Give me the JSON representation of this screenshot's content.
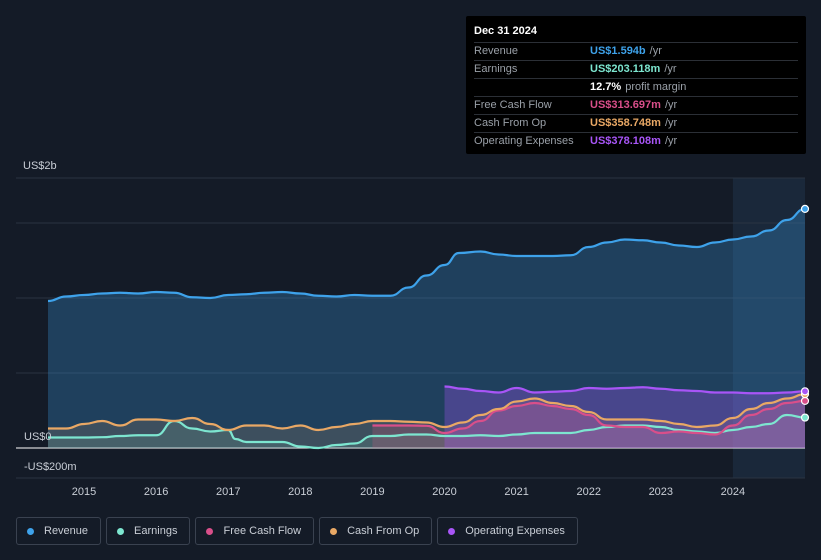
{
  "tooltip": {
    "date": "Dec 31 2024",
    "rows": [
      {
        "label": "Revenue",
        "value": "US$1.594b",
        "unit": "/yr",
        "color": "#3ea2ea"
      },
      {
        "label": "Earnings",
        "value": "US$203.118m",
        "unit": "/yr",
        "color": "#7de6d0"
      },
      {
        "label": "",
        "value": "12.7%",
        "unit": "profit margin",
        "color": "#ffffff"
      },
      {
        "label": "Free Cash Flow",
        "value": "US$313.697m",
        "unit": "/yr",
        "color": "#d94f8a"
      },
      {
        "label": "Cash From Op",
        "value": "US$358.748m",
        "unit": "/yr",
        "color": "#e9a865"
      },
      {
        "label": "Operating Expenses",
        "value": "US$378.108m",
        "unit": "/yr",
        "color": "#a855f7"
      }
    ]
  },
  "legend": [
    {
      "label": "Revenue",
      "color": "#3ea2ea"
    },
    {
      "label": "Earnings",
      "color": "#7de6d0"
    },
    {
      "label": "Free Cash Flow",
      "color": "#d94f8a"
    },
    {
      "label": "Cash From Op",
      "color": "#e9a865"
    },
    {
      "label": "Operating Expenses",
      "color": "#a855f7"
    }
  ],
  "chart_data": {
    "type": "area",
    "ylim": [
      -200,
      1800
    ],
    "y_tick_labels": {
      "top": "US$2b",
      "zero": "US$0",
      "bottom": "-US$200m"
    },
    "x_ticks": [
      2015,
      2016,
      2017,
      2018,
      2019,
      2020,
      2021,
      2022,
      2023,
      2024
    ],
    "x_range": [
      2014.5,
      2025.0
    ],
    "forecast_start": 2024.0,
    "series": [
      {
        "name": "Revenue",
        "color": "#3ea2ea",
        "x": [
          2014.5,
          2014.75,
          2015.0,
          2015.25,
          2015.5,
          2015.75,
          2016.0,
          2016.25,
          2016.5,
          2016.75,
          2017.0,
          2017.25,
          2017.5,
          2017.75,
          2018.0,
          2018.25,
          2018.5,
          2018.75,
          2019.0,
          2019.25,
          2019.5,
          2019.75,
          2020.0,
          2020.2,
          2020.5,
          2020.75,
          2021.0,
          2021.25,
          2021.5,
          2021.75,
          2022.0,
          2022.25,
          2022.5,
          2022.75,
          2023.0,
          2023.25,
          2023.5,
          2023.75,
          2024.0,
          2024.25,
          2024.5,
          2024.75,
          2025.0
        ],
        "values": [
          980,
          1010,
          1020,
          1030,
          1035,
          1030,
          1040,
          1035,
          1005,
          1000,
          1020,
          1025,
          1035,
          1040,
          1030,
          1015,
          1010,
          1020,
          1015,
          1015,
          1070,
          1150,
          1220,
          1300,
          1310,
          1290,
          1280,
          1280,
          1280,
          1285,
          1340,
          1370,
          1390,
          1385,
          1370,
          1350,
          1340,
          1370,
          1390,
          1410,
          1450,
          1520,
          1594
        ]
      },
      {
        "name": "Earnings",
        "color": "#7de6d0",
        "x": [
          2014.5,
          2014.75,
          2015.0,
          2015.25,
          2015.5,
          2015.75,
          2016.0,
          2016.25,
          2016.5,
          2016.75,
          2017.0,
          2017.1,
          2017.25,
          2017.5,
          2017.75,
          2018.0,
          2018.25,
          2018.5,
          2018.75,
          2019.0,
          2019.25,
          2019.5,
          2019.75,
          2020.0,
          2020.25,
          2020.5,
          2020.75,
          2021.0,
          2021.25,
          2021.5,
          2021.75,
          2022.0,
          2022.25,
          2022.5,
          2022.75,
          2023.0,
          2023.25,
          2023.5,
          2023.75,
          2024.0,
          2024.25,
          2024.5,
          2024.75,
          2025.0
        ],
        "values": [
          70,
          70,
          70,
          72,
          80,
          85,
          85,
          180,
          130,
          110,
          120,
          60,
          40,
          40,
          40,
          10,
          0,
          20,
          30,
          80,
          80,
          90,
          90,
          80,
          80,
          85,
          80,
          90,
          100,
          100,
          100,
          120,
          140,
          150,
          150,
          140,
          120,
          110,
          100,
          120,
          140,
          160,
          220,
          203
        ]
      },
      {
        "name": "Free Cash Flow",
        "color": "#d94f8a",
        "x": [
          2019.0,
          2019.25,
          2019.5,
          2019.75,
          2020.0,
          2020.25,
          2020.5,
          2020.75,
          2021.0,
          2021.25,
          2021.5,
          2021.75,
          2022.0,
          2022.25,
          2022.5,
          2022.75,
          2023.0,
          2023.25,
          2023.5,
          2023.75,
          2024.0,
          2024.25,
          2024.5,
          2024.75,
          2025.0
        ],
        "values": [
          150,
          150,
          150,
          148,
          100,
          130,
          180,
          250,
          280,
          300,
          280,
          260,
          220,
          150,
          140,
          140,
          100,
          110,
          100,
          90,
          150,
          220,
          260,
          300,
          314
        ]
      },
      {
        "name": "Cash From Op",
        "color": "#e9a865",
        "x": [
          2014.5,
          2014.75,
          2015.0,
          2015.25,
          2015.5,
          2015.75,
          2016.0,
          2016.25,
          2016.5,
          2016.75,
          2017.0,
          2017.25,
          2017.5,
          2017.75,
          2018.0,
          2018.25,
          2018.5,
          2018.75,
          2019.0,
          2019.25,
          2019.5,
          2019.75,
          2020.0,
          2020.25,
          2020.5,
          2020.75,
          2021.0,
          2021.25,
          2021.5,
          2021.75,
          2022.0,
          2022.25,
          2022.5,
          2022.75,
          2023.0,
          2023.25,
          2023.5,
          2023.75,
          2024.0,
          2024.25,
          2024.5,
          2024.75,
          2025.0
        ],
        "values": [
          130,
          130,
          160,
          180,
          150,
          190,
          190,
          180,
          200,
          160,
          120,
          150,
          150,
          130,
          150,
          120,
          140,
          160,
          180,
          180,
          175,
          170,
          140,
          170,
          220,
          260,
          310,
          330,
          300,
          280,
          240,
          190,
          190,
          190,
          180,
          160,
          140,
          150,
          200,
          260,
          300,
          330,
          359
        ]
      },
      {
        "name": "Operating Expenses",
        "color": "#a855f7",
        "x": [
          2020.0,
          2020.25,
          2020.5,
          2020.75,
          2021.0,
          2021.25,
          2021.5,
          2021.75,
          2022.0,
          2022.25,
          2022.5,
          2022.75,
          2023.0,
          2023.25,
          2023.5,
          2023.75,
          2024.0,
          2024.25,
          2024.5,
          2024.75,
          2025.0
        ],
        "values": [
          410,
          395,
          380,
          370,
          400,
          370,
          375,
          380,
          400,
          395,
          400,
          405,
          395,
          385,
          380,
          370,
          370,
          365,
          365,
          370,
          378
        ]
      }
    ]
  }
}
